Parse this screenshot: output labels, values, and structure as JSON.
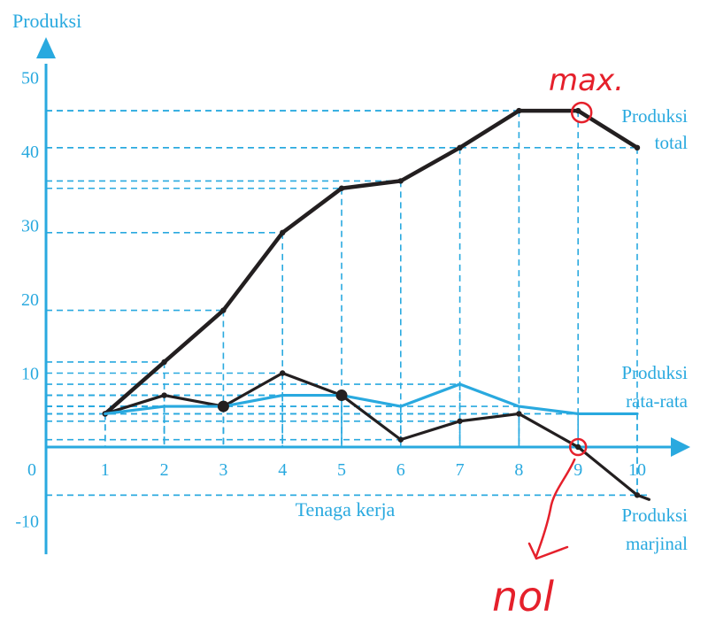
{
  "chart_data": {
    "type": "line",
    "ylabel": "Produksi",
    "xlabel": "Tenaga kerja",
    "x": [
      1,
      2,
      3,
      4,
      5,
      6,
      7,
      8,
      9,
      10
    ],
    "xticks": [
      "0",
      "1",
      "2",
      "3",
      "4",
      "5",
      "6",
      "7",
      "8",
      "9",
      "10"
    ],
    "yticks": [
      {
        "value": 50,
        "label": "50"
      },
      {
        "value": 40,
        "label": "40"
      },
      {
        "value": 30,
        "label": "30"
      },
      {
        "value": 20,
        "label": "20"
      },
      {
        "value": 10,
        "label": "10"
      },
      {
        "value": -10,
        "label": "-10"
      }
    ],
    "xlim": [
      0,
      10.8
    ],
    "ylim": [
      -13,
      53
    ],
    "series": [
      {
        "id": "total",
        "label_lines": [
          "Produksi",
          "total"
        ],
        "color": "#231f20",
        "values": [
          4.5,
          11.5,
          18.5,
          29,
          35,
          36,
          40.5,
          45.5,
          45.5,
          40.5
        ],
        "guides": true
      },
      {
        "id": "marjinal",
        "label_lines": [
          "Produksi",
          "marjinal"
        ],
        "color": "#231f20",
        "values": [
          4.5,
          7,
          5.5,
          10,
          7,
          1,
          3.5,
          4.5,
          0,
          -6.5
        ],
        "extend_to": [
          10.2,
          -6.5
        ],
        "guides": true
      },
      {
        "id": "rata-rata",
        "label_lines": [
          "Produksi",
          "rata-rata"
        ],
        "color": "#29a9df",
        "values": [
          4.5,
          5.5,
          5.5,
          7,
          7,
          5.5,
          8.5,
          5.5,
          4.5,
          4.5
        ],
        "guides": true
      }
    ],
    "highlight_points": [
      {
        "x": 3,
        "y": 5.5
      },
      {
        "x": 5,
        "y": 7
      }
    ],
    "annotations": [
      {
        "text": "max.",
        "x": 9,
        "y": 45.5
      },
      {
        "text": "nol",
        "x": 9,
        "y": 0
      }
    ],
    "grid": "dashed guides",
    "colors": {
      "axis": "#29a9df",
      "line": "#231f20",
      "annotation": "#e5202b"
    }
  }
}
